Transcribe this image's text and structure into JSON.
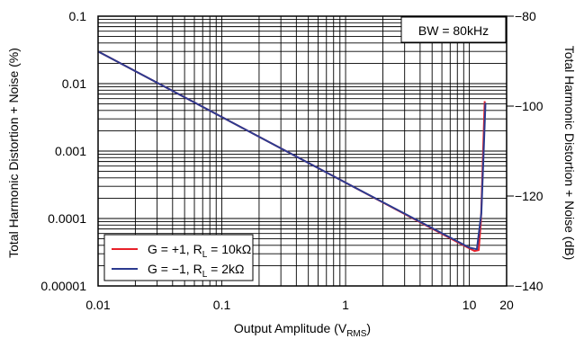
{
  "chart_data": {
    "type": "line",
    "xscale": "log",
    "yscale": "log",
    "xlim": [
      0.01,
      20
    ],
    "ylim": [
      1e-05,
      0.1
    ],
    "y2lim": [
      -140,
      -80
    ],
    "xticks": [
      "0.01",
      "0.1",
      "1",
      "10",
      "20"
    ],
    "yticks": [
      "0.1",
      "0.01",
      "0.001",
      "0.0001",
      "0.00001"
    ],
    "y2ticks": [
      "−80",
      "−100",
      "−120",
      "−140"
    ],
    "xlabel": "Output Amplitude (V",
    "xlabel_sub": "RMS",
    "xlabel_end": ")",
    "ylabel": "Total Harmonic Distortion + Noise (%)",
    "y2label": "Total Harmonic Distortion + Noise (dB)",
    "annotation": "BW = 80kHz",
    "grid": true,
    "legend_position": "bottom-left",
    "series": [
      {
        "name": "G = +1, R",
        "name_sub": "L",
        "name_end": " = 10kΩ",
        "color": "#e8202a",
        "points": [
          [
            0.01,
            0.03
          ],
          [
            0.1,
            0.0032
          ],
          [
            1,
            0.00034
          ],
          [
            10,
            3.6e-05
          ],
          [
            11,
            3.3e-05
          ],
          [
            11.9,
            3.4e-05
          ],
          [
            12.4,
            9e-05
          ],
          [
            13.3,
            0.0055
          ]
        ]
      },
      {
        "name": "G = −1, R",
        "name_sub": "L",
        "name_end": " = 2kΩ",
        "color": "#2b3a8f",
        "points": [
          [
            0.01,
            0.03
          ],
          [
            0.1,
            0.0032
          ],
          [
            1,
            0.00034
          ],
          [
            10,
            3.7e-05
          ],
          [
            11.5,
            3.5e-05
          ],
          [
            12.5,
            0.00012
          ],
          [
            13.5,
            0.0052
          ]
        ]
      }
    ]
  }
}
